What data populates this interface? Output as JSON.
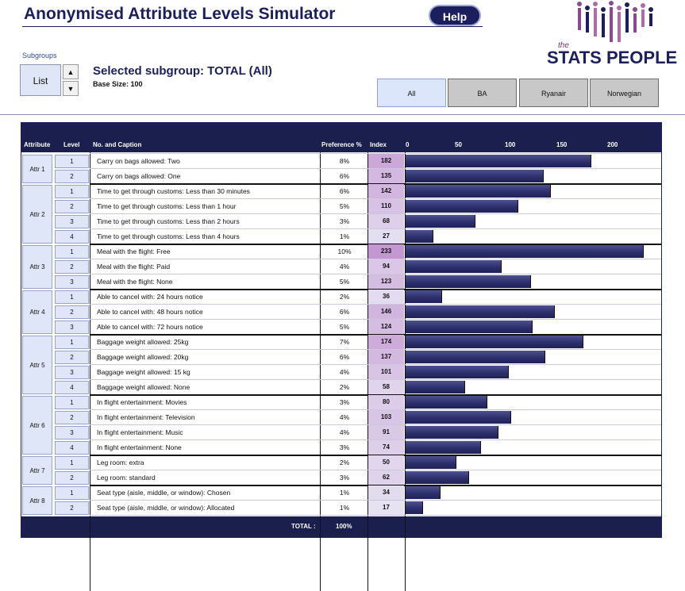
{
  "header": {
    "title": "Anonymised Attribute Levels Simulator",
    "help_label": "Help",
    "logo_the": "the",
    "logo_text": "STATS PEOPLE"
  },
  "subgroups": {
    "label": "Subgroups",
    "list_label": "List",
    "up_arrow": "▲",
    "down_arrow": "▼",
    "selected_text": "Selected subgroup:  TOTAL (All)",
    "base_size": "Base Size: 100"
  },
  "tabs": [
    {
      "label": "All",
      "active": true
    },
    {
      "label": "BA",
      "active": false
    },
    {
      "label": "Ryanair",
      "active": false
    },
    {
      "label": "Norwegian",
      "active": false
    }
  ],
  "table": {
    "headers": {
      "attribute": "Attribute",
      "level": "Level",
      "caption": "No. and Caption",
      "preference": "Preference %",
      "index": "Index",
      "axis_ticks": [
        "0",
        "50",
        "100",
        "150",
        "200"
      ]
    },
    "axis_max": 250,
    "groups": [
      {
        "attr": "Attr 1",
        "rows": [
          {
            "level": "1",
            "caption": "Carry on bags allowed: Two",
            "pref": "8%",
            "index": 182
          },
          {
            "level": "2",
            "caption": "Carry on bags allowed: One",
            "pref": "6%",
            "index": 135
          }
        ]
      },
      {
        "attr": "Attr 2",
        "rows": [
          {
            "level": "1",
            "caption": "Time to get through customs: Less than 30 minutes",
            "pref": "6%",
            "index": 142
          },
          {
            "level": "2",
            "caption": "Time to get through customs: Less than 1 hour",
            "pref": "5%",
            "index": 110
          },
          {
            "level": "3",
            "caption": "Time to get through customs: Less than 2 hours",
            "pref": "3%",
            "index": 68
          },
          {
            "level": "4",
            "caption": "Time to get through customs: Less than 4 hours",
            "pref": "1%",
            "index": 27
          }
        ]
      },
      {
        "attr": "Attr 3",
        "rows": [
          {
            "level": "1",
            "caption": "Meal with the flight: Free",
            "pref": "10%",
            "index": 233
          },
          {
            "level": "2",
            "caption": "Meal with the flight: Paid",
            "pref": "4%",
            "index": 94
          },
          {
            "level": "3",
            "caption": "Meal with the flight: None",
            "pref": "5%",
            "index": 123
          }
        ]
      },
      {
        "attr": "Attr 4",
        "rows": [
          {
            "level": "1",
            "caption": "Able to cancel with: 24 hours notice",
            "pref": "2%",
            "index": 36
          },
          {
            "level": "2",
            "caption": "Able to cancel with: 48 hours notice",
            "pref": "6%",
            "index": 146
          },
          {
            "level": "3",
            "caption": "Able to cancel with: 72 hours notice",
            "pref": "5%",
            "index": 124
          }
        ]
      },
      {
        "attr": "Attr 5",
        "rows": [
          {
            "level": "1",
            "caption": "Baggage weight allowed: 25kg",
            "pref": "7%",
            "index": 174
          },
          {
            "level": "2",
            "caption": "Baggage weight allowed: 20kg",
            "pref": "6%",
            "index": 137
          },
          {
            "level": "3",
            "caption": "Baggage weight allowed: 15 kg",
            "pref": "4%",
            "index": 101
          },
          {
            "level": "4",
            "caption": "Baggage weight allowed: None",
            "pref": "2%",
            "index": 58
          }
        ]
      },
      {
        "attr": "Attr 6",
        "rows": [
          {
            "level": "1",
            "caption": "In flight entertainment: Movies",
            "pref": "3%",
            "index": 80
          },
          {
            "level": "2",
            "caption": "In flight entertainment: Television",
            "pref": "4%",
            "index": 103
          },
          {
            "level": "3",
            "caption": "In flight entertainment: Music",
            "pref": "4%",
            "index": 91
          },
          {
            "level": "4",
            "caption": "In flight entertainment: None",
            "pref": "3%",
            "index": 74
          }
        ]
      },
      {
        "attr": "Attr 7",
        "rows": [
          {
            "level": "1",
            "caption": "Leg room: extra",
            "pref": "2%",
            "index": 50
          },
          {
            "level": "2",
            "caption": "Leg room: standard",
            "pref": "3%",
            "index": 62
          }
        ]
      },
      {
        "attr": "Attr 8",
        "rows": [
          {
            "level": "1",
            "caption": "Seat type (aisle, middle, or window): Chosen",
            "pref": "1%",
            "index": 34
          },
          {
            "level": "2",
            "caption": "Seat type (aisle, middle, or window): Allocated",
            "pref": "1%",
            "index": 17
          }
        ]
      }
    ],
    "footer": {
      "label": "TOTAL :",
      "value": "100%"
    }
  },
  "colors": {
    "navy": "#1b1f4d",
    "index_high": "#c9a3d6",
    "index_low": "#e6e2f2"
  }
}
